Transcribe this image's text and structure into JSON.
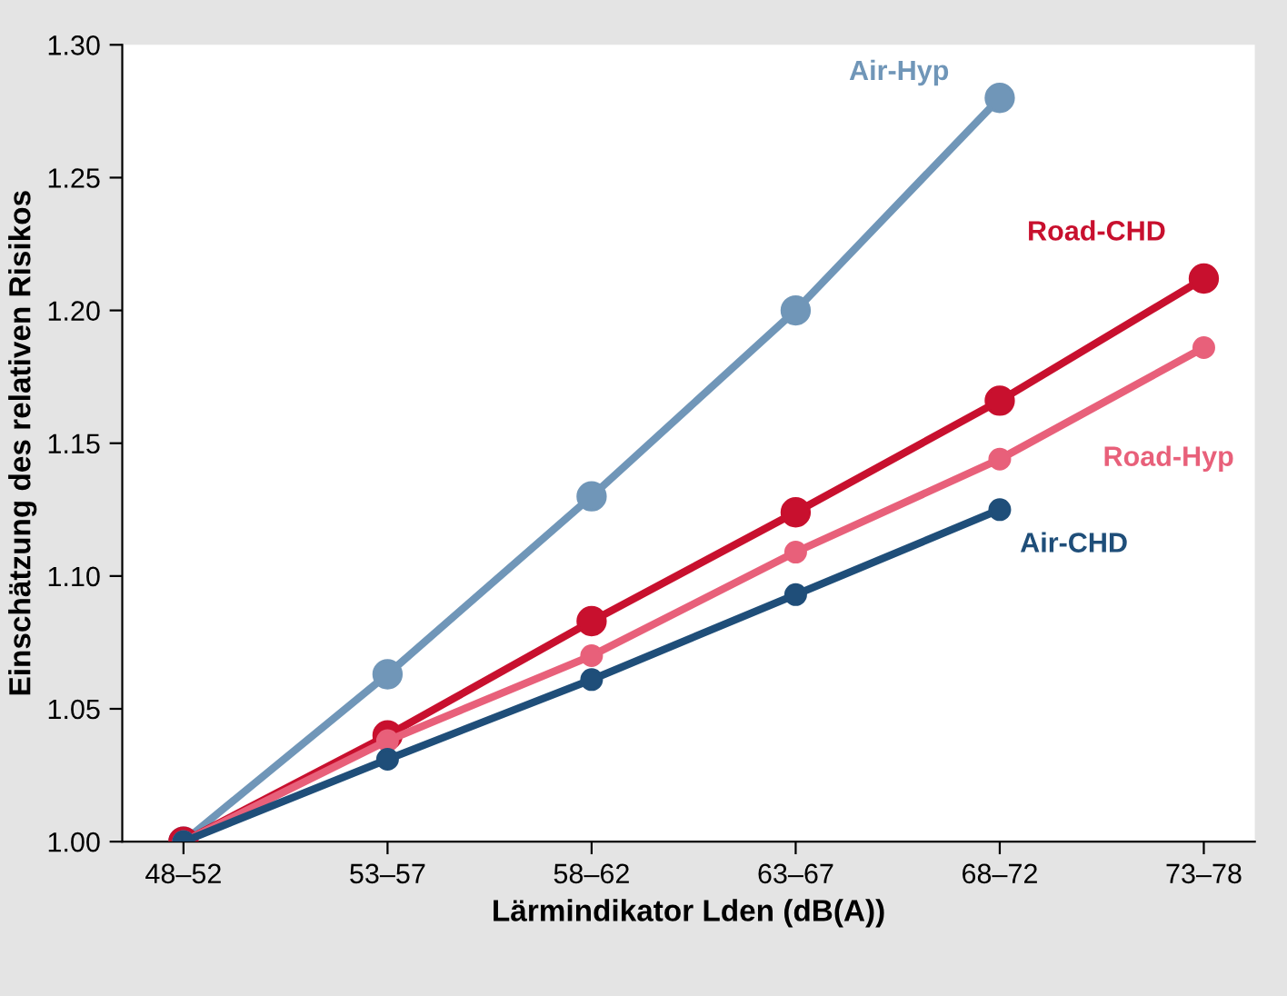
{
  "chart_data": {
    "type": "line",
    "xlabel": "Lärmindikator Lden (dB(A))",
    "ylabel": "Einschätzung des relativen Risikos",
    "categories": [
      "48–52",
      "53–57",
      "58–62",
      "63–67",
      "68–72",
      "73–78"
    ],
    "series": [
      {
        "name": "Air-Hyp",
        "color": "#7096b8",
        "values": [
          1.0,
          1.063,
          1.13,
          1.2,
          1.28,
          null
        ]
      },
      {
        "name": "Road-CHD",
        "color": "#c8102e",
        "values": [
          1.0,
          1.04,
          1.083,
          1.124,
          1.166,
          1.212
        ]
      },
      {
        "name": "Road-Hyp",
        "color": "#e8607a",
        "values": [
          1.0,
          1.038,
          1.07,
          1.109,
          1.144,
          1.186
        ]
      },
      {
        "name": "Air-CHD",
        "color": "#1f4e79",
        "values": [
          1.0,
          1.031,
          1.061,
          1.093,
          1.125,
          null
        ]
      }
    ],
    "ylim": [
      1.0,
      1.3
    ],
    "yticks": [
      {
        "value": 1.0,
        "label": "1.00"
      },
      {
        "value": 1.05,
        "label": "1.05"
      },
      {
        "value": 1.1,
        "label": "1.10"
      },
      {
        "value": 1.15,
        "label": "1.15"
      },
      {
        "value": 1.2,
        "label": "1.20"
      },
      {
        "value": 1.25,
        "label": "1.25"
      },
      {
        "value": 1.3,
        "label": "1.30"
      }
    ],
    "marker": "circle",
    "line_style": "solid",
    "grid": false,
    "legend": false
  }
}
